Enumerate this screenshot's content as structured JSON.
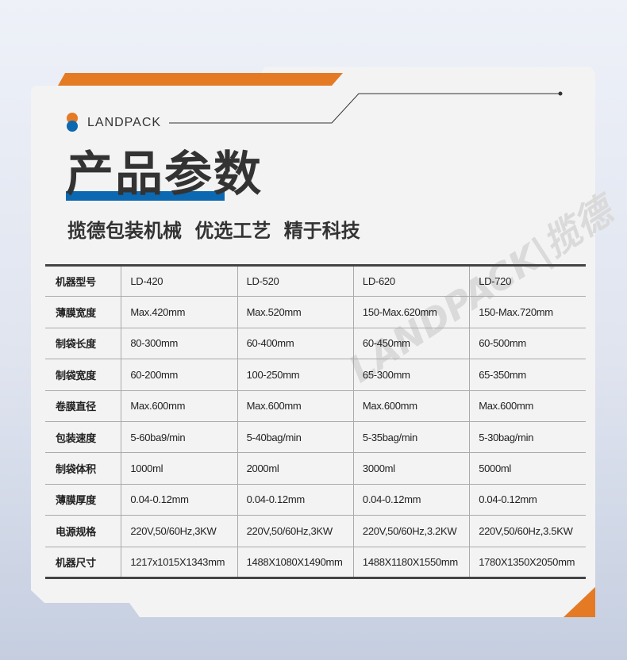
{
  "colors": {
    "orange": "#e57a25",
    "blue": "#0c68b1",
    "card": "#f3f3f3",
    "text": "#333333"
  },
  "brand": {
    "name": "LANDPACK",
    "logo_icon": "two-dots-logo-icon"
  },
  "header": {
    "title": "产品参数",
    "subtitle": "揽德包装机械  优选工艺  精于科技"
  },
  "watermark": "LANDPACK|揽德",
  "table": {
    "rows": [
      {
        "label": "机器型号",
        "values": [
          "LD-420",
          "LD-520",
          "LD-620",
          "LD-720"
        ]
      },
      {
        "label": "薄膜宽度",
        "values": [
          "Max.420mm",
          "Max.520mm",
          "150-Max.620mm",
          "150-Max.720mm"
        ]
      },
      {
        "label": "制袋长度",
        "values": [
          "80-300mm",
          "60-400mm",
          "60-450mm",
          "60-500mm"
        ]
      },
      {
        "label": "制袋宽度",
        "values": [
          "60-200mm",
          "100-250mm",
          "65-300mm",
          "65-350mm"
        ]
      },
      {
        "label": "卷膜直径",
        "values": [
          "Max.600mm",
          "Max.600mm",
          "Max.600mm",
          "Max.600mm"
        ]
      },
      {
        "label": "包装速度",
        "values": [
          "5-60ba9/min",
          "5-40bag/min",
          "5-35bag/min",
          "5-30bag/min"
        ]
      },
      {
        "label": "制袋体积",
        "values": [
          "1000ml",
          "2000ml",
          "3000ml",
          "5000ml"
        ]
      },
      {
        "label": "薄膜厚度",
        "values": [
          "0.04-0.12mm",
          "0.04-0.12mm",
          "0.04-0.12mm",
          "0.04-0.12mm"
        ]
      },
      {
        "label": "电源规格",
        "values": [
          "220V,50/60Hz,3KW",
          "220V,50/60Hz,3KW",
          "220V,50/60Hz,3.2KW",
          "220V,50/60Hz,3.5KW"
        ]
      },
      {
        "label": "机器尺寸",
        "values": [
          "1217x1015X1343mm",
          "1488X1080X1490mm",
          "1488X1180X1550mm",
          "1780X1350X2050mm"
        ]
      }
    ]
  }
}
